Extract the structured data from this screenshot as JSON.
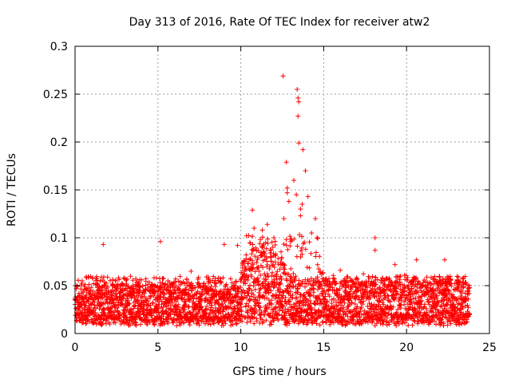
{
  "chart_data": {
    "type": "scatter",
    "title": "Day 313 of 2016, Rate Of TEC Index for receiver atw2",
    "xlabel": "GPS time / hours",
    "ylabel": "ROTI / TECUs",
    "xlim": [
      0,
      25
    ],
    "ylim": [
      0,
      0.3
    ],
    "xticks": [
      0,
      5,
      10,
      15,
      20,
      25
    ],
    "yticks": [
      0,
      0.05,
      0.1,
      0.15,
      0.2,
      0.25,
      0.3
    ],
    "xtick_labels": [
      "0",
      "5",
      "10",
      "15",
      "20",
      "25"
    ],
    "ytick_labels": [
      "0",
      "0.05",
      "0.1",
      "0.15",
      "0.2",
      "0.25",
      "0.3"
    ],
    "grid": true,
    "marker": "+",
    "color": "#ff0000",
    "series": [
      {
        "name": "ROTI",
        "notable_points": [
          {
            "x": 12.55,
            "y": 0.269
          },
          {
            "x": 13.4,
            "y": 0.255
          },
          {
            "x": 13.45,
            "y": 0.246
          },
          {
            "x": 13.5,
            "y": 0.242
          },
          {
            "x": 13.45,
            "y": 0.227
          },
          {
            "x": 13.5,
            "y": 0.199
          },
          {
            "x": 13.75,
            "y": 0.192
          },
          {
            "x": 12.75,
            "y": 0.179
          },
          {
            "x": 13.9,
            "y": 0.17
          },
          {
            "x": 13.2,
            "y": 0.16
          },
          {
            "x": 12.8,
            "y": 0.152
          },
          {
            "x": 13.35,
            "y": 0.145
          },
          {
            "x": 14.05,
            "y": 0.143
          },
          {
            "x": 12.8,
            "y": 0.147
          },
          {
            "x": 13.7,
            "y": 0.135
          },
          {
            "x": 12.9,
            "y": 0.138
          },
          {
            "x": 13.6,
            "y": 0.13
          },
          {
            "x": 10.7,
            "y": 0.129
          },
          {
            "x": 14.5,
            "y": 0.12
          },
          {
            "x": 12.6,
            "y": 0.12
          },
          {
            "x": 13.6,
            "y": 0.123
          },
          {
            "x": 11.6,
            "y": 0.114
          },
          {
            "x": 11.3,
            "y": 0.108
          },
          {
            "x": 10.8,
            "y": 0.11
          },
          {
            "x": 14.6,
            "y": 0.1
          },
          {
            "x": 18.1,
            "y": 0.1
          },
          {
            "x": 18.1,
            "y": 0.087
          },
          {
            "x": 1.7,
            "y": 0.093
          },
          {
            "x": 5.15,
            "y": 0.096
          },
          {
            "x": 9.0,
            "y": 0.093
          },
          {
            "x": 9.8,
            "y": 0.092
          },
          {
            "x": 11.5,
            "y": 0.095
          },
          {
            "x": 12.0,
            "y": 0.1
          },
          {
            "x": 13.0,
            "y": 0.096
          },
          {
            "x": 16.0,
            "y": 0.066
          },
          {
            "x": 19.3,
            "y": 0.072
          },
          {
            "x": 20.6,
            "y": 0.077
          },
          {
            "x": 22.3,
            "y": 0.077
          },
          {
            "x": 7.0,
            "y": 0.065
          }
        ]
      }
    ]
  }
}
